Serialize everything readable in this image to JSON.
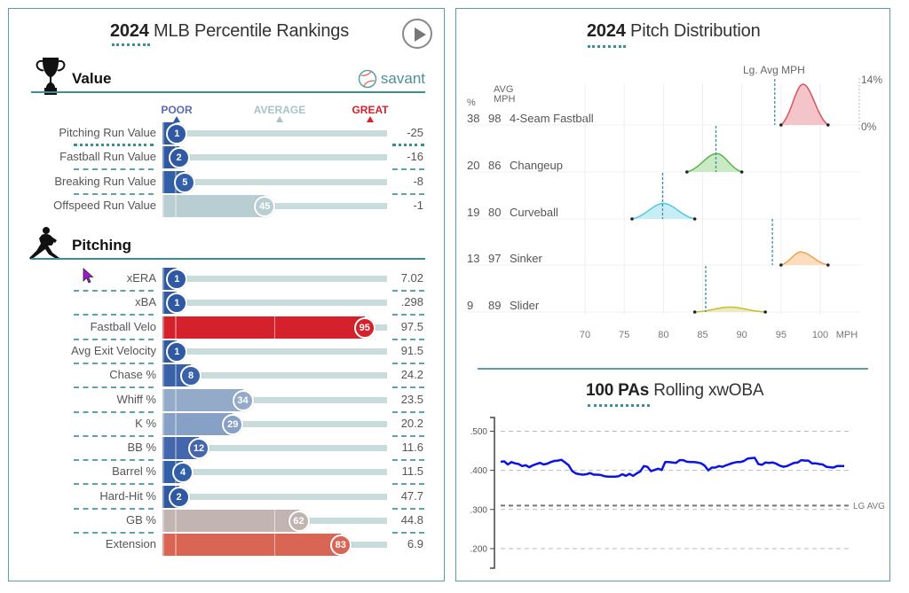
{
  "left": {
    "title_bold": "2024",
    "title_rest": " MLB Percentile Rankings",
    "play_button": "play",
    "value_section": {
      "label": "Value",
      "icon": "trophy-icon"
    },
    "savant_label": "savant",
    "scale": {
      "poor": "POOR",
      "average": "AVERAGE",
      "great": "GREAT"
    },
    "value_rows": [
      {
        "label": "Pitching Run Value",
        "pct": 1,
        "value": "-25",
        "color": "#2f59a2"
      },
      {
        "label": "Fastball Run Value",
        "pct": 2,
        "value": "-16",
        "color": "#2f59a2"
      },
      {
        "label": "Breaking Run Value",
        "pct": 5,
        "value": "-8",
        "color": "#3160a9"
      },
      {
        "label": "Offspeed Run Value",
        "pct": 45,
        "value": "-1",
        "color": "#b8ced2"
      }
    ],
    "pitching_section": {
      "label": "Pitching",
      "icon": "pitcher-icon"
    },
    "pitching_rows": [
      {
        "label": "xERA",
        "pct": 1,
        "value": "7.02",
        "color": "#2f59a2"
      },
      {
        "label": "xBA",
        "pct": 1,
        "value": ".298",
        "color": "#2f59a2"
      },
      {
        "label": "Fastball Velo",
        "pct": 95,
        "value": "97.5",
        "color": "#d4212b"
      },
      {
        "label": "Avg Exit Velocity",
        "pct": 1,
        "value": "91.5",
        "color": "#2f59a2"
      },
      {
        "label": "Chase %",
        "pct": 8,
        "value": "24.2",
        "color": "#3a62a8"
      },
      {
        "label": "Whiff %",
        "pct": 34,
        "value": "23.5",
        "color": "#93abc8"
      },
      {
        "label": "K %",
        "pct": 29,
        "value": "20.2",
        "color": "#86a0c6"
      },
      {
        "label": "BB %",
        "pct": 12,
        "value": "11.6",
        "color": "#4466ad"
      },
      {
        "label": "Barrel %",
        "pct": 4,
        "value": "11.5",
        "color": "#3160a9"
      },
      {
        "label": "Hard-Hit %",
        "pct": 2,
        "value": "47.7",
        "color": "#2f59a2"
      },
      {
        "label": "GB %",
        "pct": 62,
        "value": "44.8",
        "color": "#c2b4b0"
      },
      {
        "label": "Extension",
        "pct": 83,
        "value": "6.9",
        "color": "#d96555"
      }
    ]
  },
  "right": {
    "pitch_title_bold": "2024",
    "pitch_title_rest": " Pitch Distribution",
    "lg_avg_label": "Lg. Avg MPH",
    "col_pct": "%",
    "col_avg1": "AVG",
    "col_avg2": "MPH",
    "top_pct": "14%",
    "zero_pct": "0%",
    "pitches": [
      {
        "pct": "38",
        "mph": "98",
        "name": "4-Seam Fastball",
        "color": "#d9535f",
        "fill": "#f3c4ca",
        "min": 95,
        "max": 101,
        "peak": 97.8,
        "height": 1.0,
        "lg_avg": 94.2
      },
      {
        "pct": "20",
        "mph": "86",
        "name": "Changeup",
        "color": "#55b848",
        "fill": "#cbe9c5",
        "min": 83,
        "max": 90,
        "peak": 86.8,
        "height": 0.45,
        "lg_avg": 86.7
      },
      {
        "pct": "19",
        "mph": "80",
        "name": "Curveball",
        "color": "#4fcbe6",
        "fill": "#c9edf5",
        "min": 76,
        "max": 84,
        "peak": 80,
        "height": 0.38,
        "lg_avg": 79.9
      },
      {
        "pct": "13",
        "mph": "97",
        "name": "Sinker",
        "color": "#f2a24a",
        "fill": "#fcdcbf",
        "min": 95,
        "max": 101,
        "peak": 97.5,
        "height": 0.32,
        "lg_avg": 93.9
      },
      {
        "pct": "9",
        "mph": "89",
        "name": "Slider",
        "color": "#c6bf2a",
        "fill": "#ece9c3",
        "min": 84,
        "max": 93,
        "peak": 88.5,
        "height": 0.12,
        "lg_avg": 85.4
      }
    ],
    "x_ticks": [
      "70",
      "75",
      "80",
      "85",
      "90",
      "95",
      "100"
    ],
    "x_unit": "MPH",
    "xwoba_title_bold": "100 PAs",
    "xwoba_title_rest": " Rolling xwOBA",
    "xwoba_y_ticks": [
      ".500",
      ".400",
      ".300",
      ".200"
    ],
    "lg_avg_text": "LG AVG",
    "chart_data": {
      "type": "line",
      "title": "100 PAs Rolling xwOBA",
      "ylim": [
        0.15,
        0.535
      ],
      "y_ticks": [
        0.5,
        0.4,
        0.3,
        0.2
      ],
      "lg_avg": 0.31,
      "values": [
        0.422,
        0.423,
        0.415,
        0.421,
        0.418,
        0.416,
        0.411,
        0.413,
        0.408,
        0.413,
        0.416,
        0.419,
        0.415,
        0.417,
        0.421,
        0.424,
        0.425,
        0.427,
        0.42,
        0.413,
        0.398,
        0.392,
        0.39,
        0.389,
        0.39,
        0.393,
        0.389,
        0.389,
        0.388,
        0.385,
        0.384,
        0.384,
        0.384,
        0.385,
        0.39,
        0.386,
        0.391,
        0.386,
        0.392,
        0.397,
        0.411,
        0.409,
        0.398,
        0.401,
        0.404,
        0.401,
        0.421,
        0.421,
        0.42,
        0.419,
        0.426,
        0.426,
        0.422,
        0.421,
        0.421,
        0.42,
        0.418,
        0.412,
        0.4,
        0.407,
        0.407,
        0.411,
        0.409,
        0.413,
        0.416,
        0.419,
        0.421,
        0.421,
        0.424,
        0.43,
        0.431,
        0.432,
        0.416,
        0.414,
        0.42,
        0.419,
        0.42,
        0.417,
        0.412,
        0.409,
        0.411,
        0.415,
        0.419,
        0.42,
        0.426,
        0.425,
        0.425,
        0.418,
        0.418,
        0.416,
        0.415,
        0.409,
        0.408,
        0.407,
        0.411,
        0.411,
        0.411
      ]
    }
  }
}
